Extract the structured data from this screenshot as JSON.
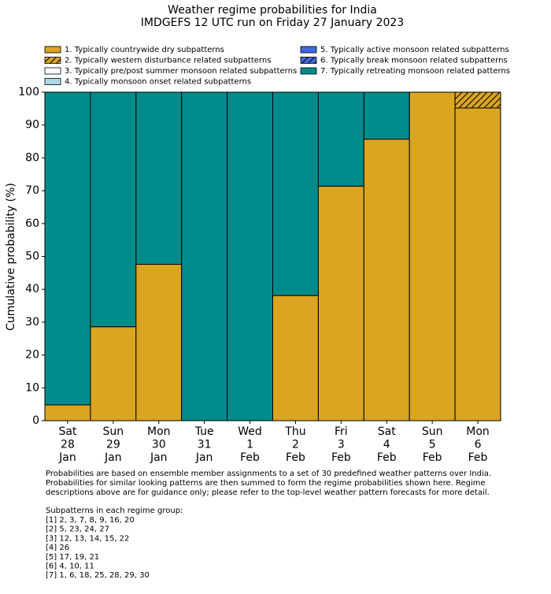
{
  "chart_data": {
    "type": "stacked_bar",
    "title": "Weather regime probabilities for India",
    "subtitle": "IMDGEFS 12 UTC run on Friday 27 January 2023",
    "y_label": "Cumulative probability (%)",
    "categories": [
      [
        "Sat",
        "28",
        "Jan"
      ],
      [
        "Sun",
        "29",
        "Jan"
      ],
      [
        "Mon",
        "30",
        "Jan"
      ],
      [
        "Tue",
        "31",
        "Jan"
      ],
      [
        "Wed",
        "1",
        "Feb"
      ],
      [
        "Thu",
        "2",
        "Feb"
      ],
      [
        "Fri",
        "3",
        "Feb"
      ],
      [
        "Sat",
        "4",
        "Feb"
      ],
      [
        "Sun",
        "5",
        "Feb"
      ],
      [
        "Mon",
        "6",
        "Feb"
      ]
    ],
    "series": [
      {
        "name": "1. Typically countrywide dry subpatterns",
        "color": "#daa520",
        "hatch": false,
        "values": [
          4.8,
          28.6,
          47.6,
          0,
          0,
          38.1,
          71.4,
          85.7,
          100,
          95.2
        ]
      },
      {
        "name": "2. Typically western disturbance related subpatterns",
        "color": "#daa520",
        "hatch": true,
        "values": [
          0,
          0,
          0,
          0,
          0,
          0,
          0,
          0,
          0,
          4.8
        ]
      },
      {
        "name": "3. Typically pre/post summer monsoon related subpatterns",
        "color": "#ffffff",
        "hatch": false,
        "values": [
          0,
          0,
          0,
          0,
          0,
          0,
          0,
          0,
          0,
          0
        ]
      },
      {
        "name": "4. Typically monsoon onset related subpatterns",
        "color": "#add8e6",
        "hatch": false,
        "values": [
          0,
          0,
          0,
          0,
          0,
          0,
          0,
          0,
          0,
          0
        ]
      },
      {
        "name": "5. Typically active monsoon related subpatterns",
        "color": "#4169e1",
        "hatch": false,
        "values": [
          0,
          0,
          0,
          0,
          0,
          0,
          0,
          0,
          0,
          0
        ]
      },
      {
        "name": "6. Typically break monsoon related subpatterns",
        "color": "#4169e1",
        "hatch": true,
        "values": [
          0,
          0,
          0,
          0,
          0,
          0,
          0,
          0,
          0,
          0
        ]
      },
      {
        "name": "7. Typically retreating monsoon related patterns",
        "color": "#008b8b",
        "hatch": false,
        "values": [
          95.2,
          71.4,
          52.4,
          100,
          100,
          61.9,
          28.6,
          14.3,
          0,
          0
        ]
      }
    ],
    "ylim": [
      0,
      100
    ],
    "yticks": [
      0,
      10,
      20,
      30,
      40,
      50,
      60,
      70,
      80,
      90,
      100
    ],
    "notes": [
      "Probabilities are based on ensemble member assignments to a set of 30 predefined weather patterns over India.",
      "Probabilities for similar looking patterns are then summed to form the regime probabilities shown here. Regime",
      "descriptions above are for guidance only; please refer to the top-level weather pattern forecasts for more detail."
    ],
    "subpatterns_title": "Subpatterns in each regime group:",
    "subpatterns": [
      "[1] 2, 3, 7, 8, 9, 16, 20",
      "[2] 5, 23, 24, 27",
      "[3] 12, 13, 14, 15, 22",
      "[4] 26",
      "[5] 17, 19, 21",
      "[6] 4, 10, 11",
      "[7] 1, 6, 18, 25, 28, 29, 30"
    ]
  }
}
